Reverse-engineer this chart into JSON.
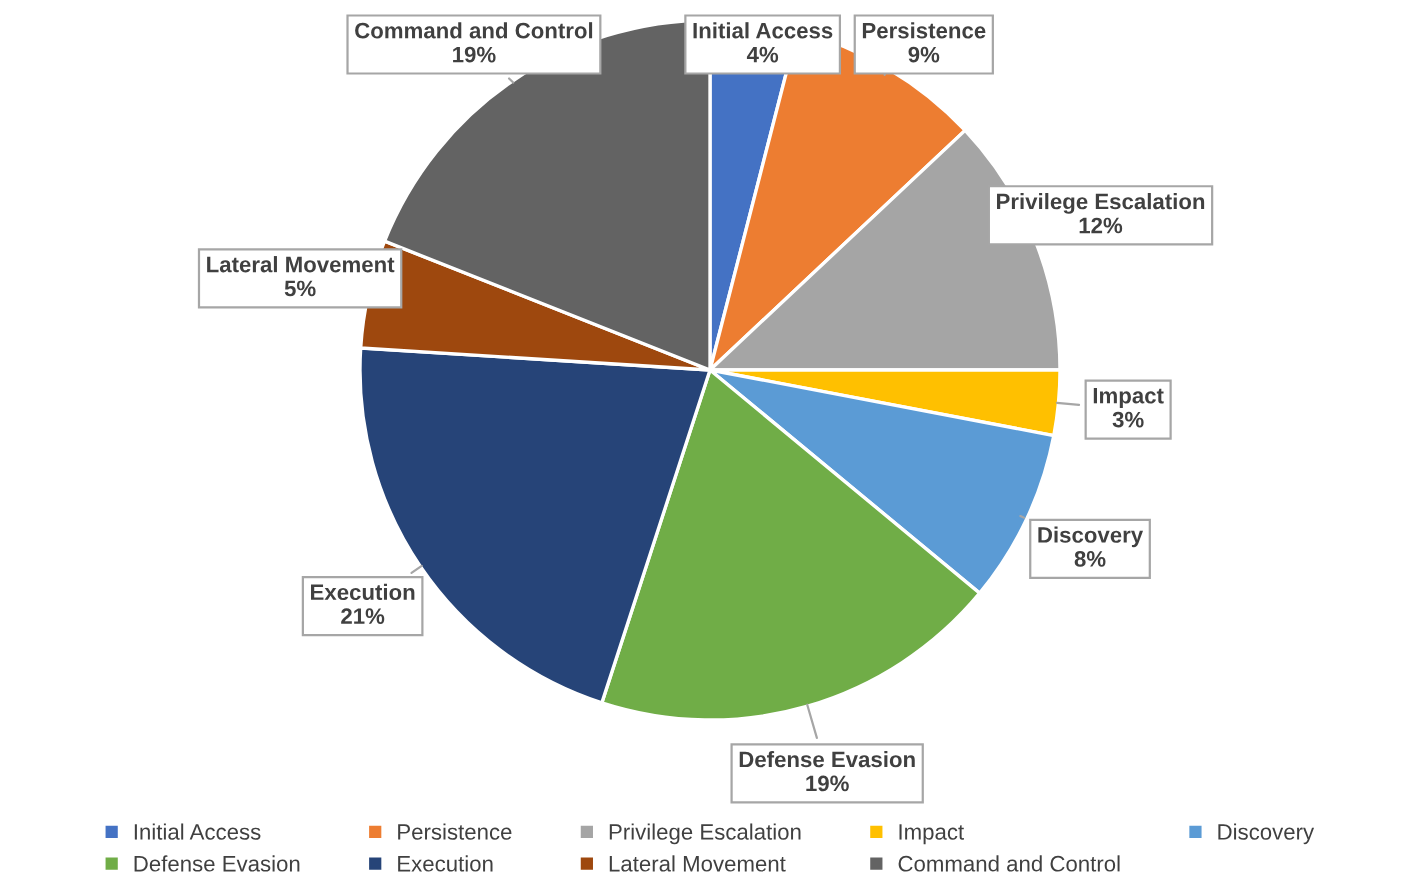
{
  "chart_data": {
    "type": "pie",
    "categories": [
      "Initial Access",
      "Persistence",
      "Privilege Escalation",
      "Impact",
      "Discovery",
      "Defense Evasion",
      "Execution",
      "Lateral Movement",
      "Command and Control"
    ],
    "values": [
      4,
      9,
      12,
      3,
      8,
      19,
      21,
      5,
      19
    ],
    "value_labels": [
      "4%",
      "9%",
      "12%",
      "3%",
      "8%",
      "19%",
      "21%",
      "5%",
      "19%"
    ],
    "colors": [
      "#4472c4",
      "#ed7d31",
      "#a5a5a5",
      "#ffc000",
      "#5b9bd5",
      "#70ad47",
      "#264478",
      "#9e480e",
      "#636363"
    ],
    "legend": "bottom"
  }
}
